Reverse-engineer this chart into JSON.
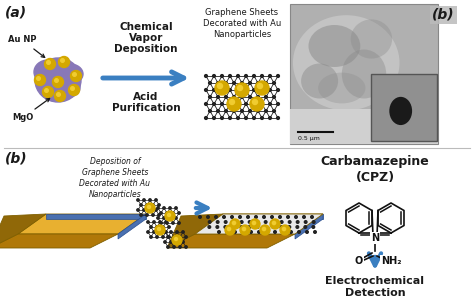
{
  "figsize": [
    4.74,
    2.96
  ],
  "dpi": 100,
  "bg_color": "#ffffff",
  "top_panel": {
    "label_a": "(a)",
    "label_b_top": "(b)",
    "text_cvd": "Chemical\nVapor\nDeposition",
    "text_acid": "Acid\nPurification",
    "text_graphene": "Graphene Sheets\nDecorated with Au\nNanoparticles",
    "text_aunp": "Au NP",
    "text_mgo": "MgO"
  },
  "bottom_panel": {
    "label_b": "(b)",
    "text_deposition": "Deposition of\nGraphene Sheets\nDecorated with Au\nNanoparticles",
    "text_cpz_title": "Carbamazepine\n(CPZ)",
    "text_electrochemical": "Electrochemical\nDetection",
    "text_scale": "0.5 μm"
  },
  "arrow_color": "#3a7fc1",
  "text_color_dark": "#1a1a1a",
  "divider_color": "#cccccc",
  "cluster_blob_color": "#8878b8",
  "au_np_color": "#d4a800",
  "au_np_highlight": "#f0cc30",
  "graphene_dot_color": "#222222",
  "electrode_gold_top": "#e8b030",
  "electrode_gold_side": "#b07808",
  "electrode_blue": "#4a70b0",
  "electrode_blue_dark": "#2a5090"
}
